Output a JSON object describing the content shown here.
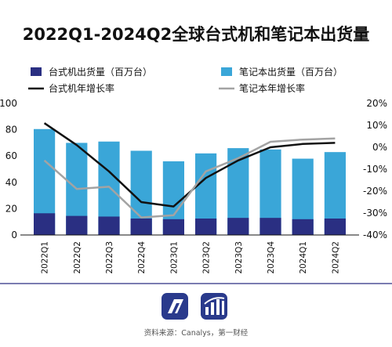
{
  "chart_data": {
    "type": "bar",
    "title": "2022Q1-2024Q2全球台式机和笔记本出货量",
    "categories": [
      "2022Q1",
      "2022Q2",
      "2022Q3",
      "2022Q4",
      "2023Q1",
      "2023Q2",
      "2023Q3",
      "2023Q4",
      "2024Q1",
      "2024Q2"
    ],
    "series": [
      {
        "name": "台式机出货量（百万台）",
        "kind": "bar",
        "axis": "left",
        "color": "#2a2f82",
        "values": [
          16.5,
          14.5,
          14.0,
          12.5,
          12.0,
          12.5,
          13.0,
          13.0,
          12.0,
          12.5
        ]
      },
      {
        "name": "笔记本出货量（百万台）",
        "kind": "bar",
        "axis": "left",
        "color": "#3aa6d8",
        "values": [
          80.5,
          70.0,
          71.0,
          64.0,
          56.0,
          62.0,
          66.0,
          65.0,
          58.0,
          63.0
        ]
      },
      {
        "name": "台式机年增长率",
        "kind": "line",
        "axis": "right",
        "color": "#111111",
        "values": [
          11,
          1,
          -11,
          -25,
          -27,
          -14,
          -6,
          0,
          1.5,
          2
        ]
      },
      {
        "name": "笔记本年增长率",
        "kind": "line",
        "axis": "right",
        "color": "#a3a3a3",
        "values": [
          -6,
          -19,
          -18,
          -32,
          -31,
          -11,
          -5,
          2.5,
          3.5,
          4
        ]
      }
    ],
    "left_axis": {
      "ylim": [
        0,
        100
      ],
      "ticks": [
        "0",
        "20",
        "40",
        "60",
        "80",
        "100"
      ]
    },
    "right_axis": {
      "ylim": [
        -40,
        20
      ],
      "ticks": [
        "-40%",
        "-30%",
        "-20%",
        "-10%",
        "0%",
        "10%",
        "20%"
      ]
    },
    "legend_position": "top",
    "grid": false
  },
  "footer": {
    "source": "资料来源：Canalys，第一财经"
  },
  "colors": {
    "divider": "#2a2f82",
    "logo": "#2a3a8c"
  }
}
